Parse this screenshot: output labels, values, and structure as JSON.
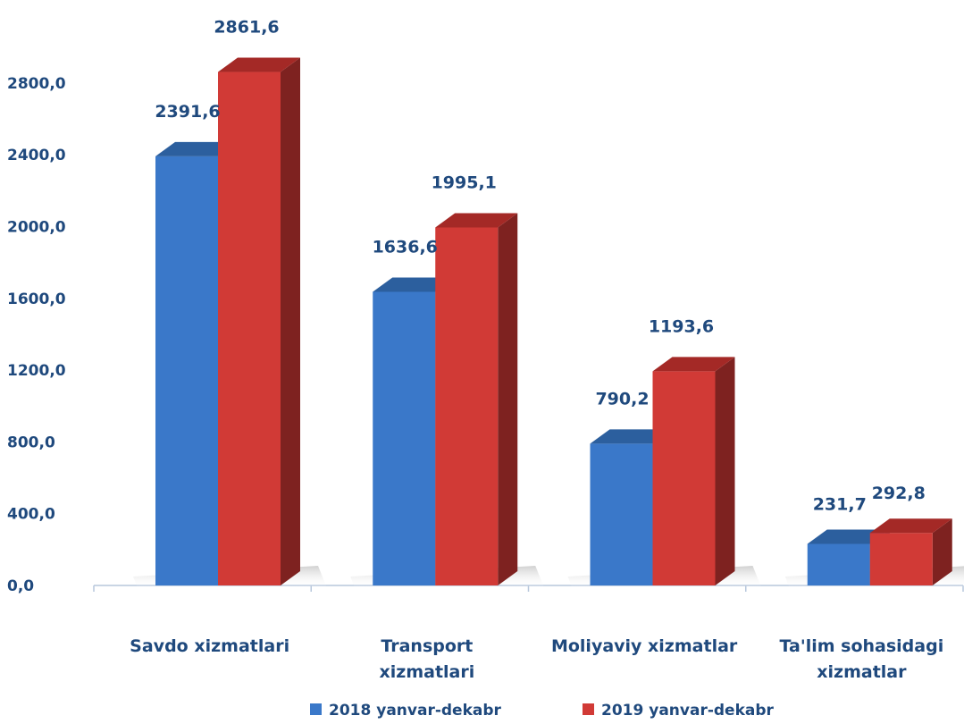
{
  "chart_data": {
    "type": "bar",
    "categories": [
      [
        "Savdo xizmatlari"
      ],
      [
        "Transport",
        "xizmatlari"
      ],
      [
        "Moliyaviy xizmatlar"
      ],
      [
        "Ta'lim sohasidagi",
        "xizmatlar"
      ]
    ],
    "series": [
      {
        "name": "2018 yanvar-dekabr",
        "values": [
          2391.6,
          1636.6,
          790.2,
          231.7
        ],
        "value_labels": [
          "2391,6",
          "1636,6",
          "790,2",
          "231,7"
        ],
        "color": "#3a78c9",
        "side_color": "#1f4f8e",
        "top_color": "#2c5f9e"
      },
      {
        "name": "2019 yanvar-dekabr",
        "values": [
          2861.6,
          1995.1,
          1193.6,
          292.8
        ],
        "value_labels": [
          "2861,6",
          "1995,1",
          "1193,6",
          "292,8"
        ],
        "color": "#d13a36",
        "side_color": "#7e2220",
        "top_color": "#a42926"
      }
    ],
    "yticks": [
      0,
      400,
      800,
      1200,
      1600,
      2000,
      2400,
      2800
    ],
    "ytick_labels": [
      "0,0",
      "400,0",
      "800,0",
      "1200,0",
      "1600,0",
      "2000,0",
      "2400,0",
      "2800,0"
    ],
    "ylim": [
      0,
      2800
    ],
    "grid": false,
    "legend_position": "bottom"
  }
}
